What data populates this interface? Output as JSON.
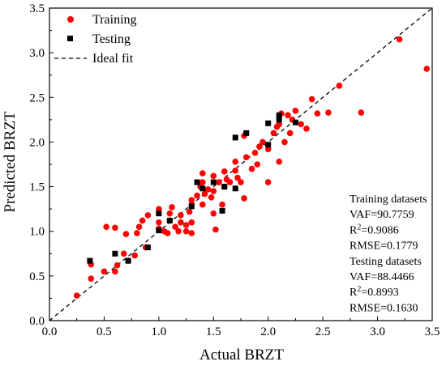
{
  "chart_data": {
    "type": "scatter",
    "title": "",
    "xlabel": "Actual BRZT",
    "ylabel": "Predicted BRZT",
    "xlim": [
      0.0,
      3.5
    ],
    "ylim": [
      0.0,
      3.5
    ],
    "xticks": [
      "0.0",
      "0.5",
      "1.0",
      "1.5",
      "2.0",
      "2.5",
      "3.0",
      "3.5"
    ],
    "yticks": [
      "0.0",
      "0.5",
      "1.0",
      "1.5",
      "2.0",
      "2.5",
      "3.0",
      "3.5"
    ],
    "grid": false,
    "legend_position": "top-left",
    "series": [
      {
        "name": "Training",
        "marker": "circle",
        "color": "#ff0000",
        "points": [
          [
            0.25,
            0.28
          ],
          [
            0.38,
            0.63
          ],
          [
            0.38,
            0.47
          ],
          [
            0.5,
            0.55
          ],
          [
            0.52,
            1.05
          ],
          [
            0.6,
            0.55
          ],
          [
            0.6,
            1.04
          ],
          [
            0.62,
            0.62
          ],
          [
            0.68,
            0.75
          ],
          [
            0.7,
            0.97
          ],
          [
            0.72,
            0.67
          ],
          [
            0.78,
            0.73
          ],
          [
            0.8,
            0.98
          ],
          [
            0.82,
            1.05
          ],
          [
            0.85,
            1.12
          ],
          [
            0.88,
            0.82
          ],
          [
            0.9,
            1.18
          ],
          [
            1.0,
            1.25
          ],
          [
            1.0,
            1.1
          ],
          [
            1.0,
            1.03
          ],
          [
            1.05,
            1.0
          ],
          [
            1.08,
            0.98
          ],
          [
            1.1,
            1.12
          ],
          [
            1.1,
            1.2
          ],
          [
            1.12,
            1.27
          ],
          [
            1.15,
            1.05
          ],
          [
            1.18,
            1.0
          ],
          [
            1.2,
            1.1
          ],
          [
            1.2,
            1.18
          ],
          [
            1.25,
            1.0
          ],
          [
            1.25,
            1.07
          ],
          [
            1.28,
            1.22
          ],
          [
            1.3,
            0.98
          ],
          [
            1.3,
            1.1
          ],
          [
            1.3,
            1.3
          ],
          [
            1.3,
            1.35
          ],
          [
            1.35,
            1.4
          ],
          [
            1.38,
            1.5
          ],
          [
            1.4,
            1.55
          ],
          [
            1.4,
            1.65
          ],
          [
            1.4,
            1.3
          ],
          [
            1.42,
            1.42
          ],
          [
            1.45,
            1.47
          ],
          [
            1.48,
            1.38
          ],
          [
            1.5,
            1.2
          ],
          [
            1.5,
            1.45
          ],
          [
            1.5,
            1.62
          ],
          [
            1.52,
            1.02
          ],
          [
            1.55,
            1.55
          ],
          [
            1.58,
            1.3
          ],
          [
            1.6,
            1.67
          ],
          [
            1.6,
            1.5
          ],
          [
            1.62,
            1.58
          ],
          [
            1.65,
            1.55
          ],
          [
            1.7,
            1.78
          ],
          [
            1.7,
            1.68
          ],
          [
            1.72,
            1.6
          ],
          [
            1.75,
            1.55
          ],
          [
            1.78,
            1.37
          ],
          [
            1.78,
            2.07
          ],
          [
            1.8,
            1.83
          ],
          [
            1.85,
            1.7
          ],
          [
            1.88,
            1.88
          ],
          [
            1.9,
            1.75
          ],
          [
            1.92,
            1.95
          ],
          [
            1.95,
            2.0
          ],
          [
            2.0,
            1.55
          ],
          [
            2.0,
            1.92
          ],
          [
            2.05,
            2.1
          ],
          [
            2.08,
            2.17
          ],
          [
            2.1,
            1.78
          ],
          [
            2.1,
            2.2
          ],
          [
            2.12,
            2.32
          ],
          [
            2.15,
            2.0
          ],
          [
            2.18,
            2.3
          ],
          [
            2.2,
            2.1
          ],
          [
            2.22,
            2.25
          ],
          [
            2.25,
            2.35
          ],
          [
            2.3,
            2.2
          ],
          [
            2.35,
            2.15
          ],
          [
            2.4,
            2.48
          ],
          [
            2.45,
            2.32
          ],
          [
            2.55,
            2.33
          ],
          [
            2.65,
            2.63
          ],
          [
            2.85,
            2.33
          ],
          [
            3.2,
            3.15
          ],
          [
            3.45,
            2.82
          ]
        ]
      },
      {
        "name": "Testing",
        "marker": "square",
        "color": "#000000",
        "points": [
          [
            0.37,
            0.67
          ],
          [
            0.6,
            0.75
          ],
          [
            0.72,
            0.67
          ],
          [
            0.9,
            0.82
          ],
          [
            1.0,
            1.01
          ],
          [
            1.0,
            1.2
          ],
          [
            1.1,
            1.12
          ],
          [
            1.3,
            1.28
          ],
          [
            1.35,
            1.55
          ],
          [
            1.4,
            1.48
          ],
          [
            1.5,
            1.55
          ],
          [
            1.58,
            1.23
          ],
          [
            1.6,
            1.5
          ],
          [
            1.7,
            1.48
          ],
          [
            1.7,
            2.05
          ],
          [
            1.8,
            2.1
          ],
          [
            2.0,
            2.21
          ],
          [
            2.0,
            1.97
          ],
          [
            2.1,
            2.25
          ],
          [
            2.1,
            2.3
          ],
          [
            2.25,
            2.22
          ]
        ]
      }
    ],
    "reference_line": {
      "name": "Ideal fit",
      "style": "dashed",
      "from": [
        0,
        0
      ],
      "to": [
        3.5,
        3.5
      ]
    },
    "stats": [
      "Training datasets",
      "VAF=90.7759",
      "R2=0.9086",
      "RMSE=0.1779",
      "Testing datasets",
      "VAF=88.4466",
      "R2=0.8993",
      "RMSE=0.1630"
    ]
  }
}
